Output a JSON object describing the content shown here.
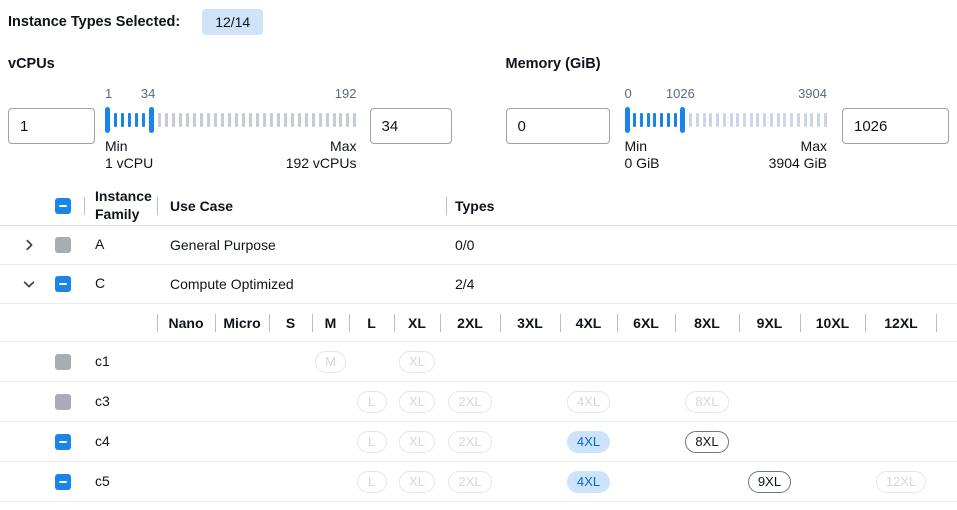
{
  "header": {
    "label": "Instance Types Selected:",
    "count_badge": "12/14"
  },
  "colors": {
    "accent_blue": "#1a84e8",
    "selected_badge_bg": "#cde3fa",
    "selected_badge_text": "#0667d8",
    "count_badge_bg": "#cfe4f8",
    "disabled_gray": "#a9adb3"
  },
  "filters": {
    "vcpus": {
      "title": "vCPUs",
      "min": 1,
      "max": 192,
      "low": 1,
      "high": 34,
      "low_value": "1",
      "high_value": "34",
      "scale_start": "1",
      "scale_current": "34",
      "scale_end": "192",
      "min_label": "Min",
      "min_detail": "1 vCPU",
      "max_label": "Max",
      "max_detail": "192 vCPUs"
    },
    "memory": {
      "title": "Memory (GiB)",
      "min": 0,
      "max": 3904,
      "low": 0,
      "high": 1026,
      "low_value": "0",
      "high_value": "1026",
      "scale_start": "0",
      "scale_current": "1026",
      "scale_end": "3904",
      "min_label": "Min",
      "min_detail": "0 GiB",
      "max_label": "Max",
      "max_detail": "3904 GiB"
    }
  },
  "table": {
    "headers": {
      "family": "Instance Family",
      "use_case": "Use Case",
      "types": "Types"
    },
    "size_columns": [
      "Nano",
      "Micro",
      "S",
      "M",
      "L",
      "XL",
      "2XL",
      "3XL",
      "4XL",
      "6XL",
      "8XL",
      "9XL",
      "10XL",
      "12XL"
    ],
    "families": [
      {
        "name": "A",
        "use_case": "General Purpose",
        "types": "0/0",
        "expanded": false,
        "checkbox": "disabled"
      },
      {
        "name": "C",
        "use_case": "Compute Optimized",
        "types": "2/4",
        "expanded": true,
        "checkbox": "indeterminate"
      }
    ],
    "instances": [
      {
        "name": "c1",
        "checkbox": "disabled",
        "sizes": [
          {
            "size": "M",
            "state": "disabled"
          },
          {
            "size": "XL",
            "state": "disabled"
          }
        ]
      },
      {
        "name": "c3",
        "checkbox": "disabled",
        "sizes": [
          {
            "size": "L",
            "state": "disabled"
          },
          {
            "size": "XL",
            "state": "disabled"
          },
          {
            "size": "2XL",
            "state": "disabled"
          },
          {
            "size": "4XL",
            "state": "disabled"
          },
          {
            "size": "8XL",
            "state": "disabled"
          }
        ]
      },
      {
        "name": "c4",
        "checkbox": "indeterminate",
        "sizes": [
          {
            "size": "L",
            "state": "disabled"
          },
          {
            "size": "XL",
            "state": "disabled"
          },
          {
            "size": "2XL",
            "state": "disabled"
          },
          {
            "size": "4XL",
            "state": "selected"
          },
          {
            "size": "8XL",
            "state": "available"
          }
        ]
      },
      {
        "name": "c5",
        "checkbox": "indeterminate",
        "sizes": [
          {
            "size": "L",
            "state": "disabled"
          },
          {
            "size": "XL",
            "state": "disabled"
          },
          {
            "size": "2XL",
            "state": "disabled"
          },
          {
            "size": "4XL",
            "state": "selected"
          },
          {
            "size": "9XL",
            "state": "available"
          },
          {
            "size": "12XL",
            "state": "disabled"
          }
        ]
      }
    ]
  }
}
